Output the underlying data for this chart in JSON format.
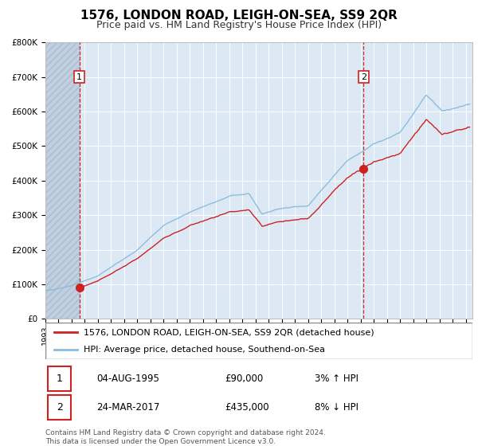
{
  "title": "1576, LONDON ROAD, LEIGH-ON-SEA, SS9 2QR",
  "subtitle": "Price paid vs. HM Land Registry's House Price Index (HPI)",
  "legend_label_red": "1576, LONDON ROAD, LEIGH-ON-SEA, SS9 2QR (detached house)",
  "legend_label_blue": "HPI: Average price, detached house, Southend-on-Sea",
  "footnote1": "Contains HM Land Registry data © Crown copyright and database right 2024.",
  "footnote2": "This data is licensed under the Open Government Licence v3.0.",
  "transaction1_date": "04-AUG-1995",
  "transaction1_price": "£90,000",
  "transaction1_hpi": "3% ↑ HPI",
  "transaction2_date": "24-MAR-2017",
  "transaction2_price": "£435,000",
  "transaction2_hpi": "8% ↓ HPI",
  "marker1_x": 1995.59,
  "marker1_y": 90000,
  "marker2_x": 2017.23,
  "marker2_y": 435000,
  "vline1_x": 1995.59,
  "vline2_x": 2017.23,
  "ylim": [
    0,
    800000
  ],
  "xlim_start": 1993.0,
  "xlim_end": 2025.5,
  "background_color": "#dce9f5",
  "hatched_bg_color": "#c0d0e0",
  "red_color": "#cc2222",
  "blue_color": "#88bbdd",
  "grid_color": "#ffffff",
  "title_fontsize": 11,
  "subtitle_fontsize": 9,
  "legend_fontsize": 8,
  "tick_fontsize": 7,
  "table_fontsize": 8.5,
  "footnote_fontsize": 6.5
}
